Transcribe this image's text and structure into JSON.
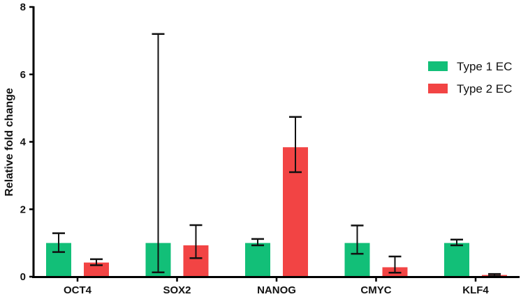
{
  "chart_data": {
    "type": "bar",
    "title": "",
    "xlabel": "",
    "ylabel": "Relative fold change",
    "ylim": [
      0,
      8
    ],
    "yticks": [
      0,
      2,
      4,
      6,
      8
    ],
    "grid": false,
    "legend_position": "top-right",
    "categories": [
      "OCT4",
      "SOX2",
      "NANOG",
      "CMYC",
      "KLF4"
    ],
    "series": [
      {
        "name": "Type 1 EC",
        "color": "#12bf78",
        "values": [
          1.0,
          1.0,
          1.0,
          1.0,
          1.0
        ],
        "err_low": [
          0.73,
          0.13,
          0.93,
          0.68,
          0.93
        ],
        "err_high": [
          1.29,
          7.2,
          1.12,
          1.52,
          1.1
        ]
      },
      {
        "name": "Type 2 EC",
        "color": "#f24444",
        "values": [
          0.42,
          0.93,
          3.84,
          0.28,
          0.05
        ],
        "err_low": [
          0.34,
          0.55,
          3.1,
          0.12,
          0.02
        ],
        "err_high": [
          0.52,
          1.53,
          4.74,
          0.6,
          0.08
        ]
      }
    ]
  }
}
